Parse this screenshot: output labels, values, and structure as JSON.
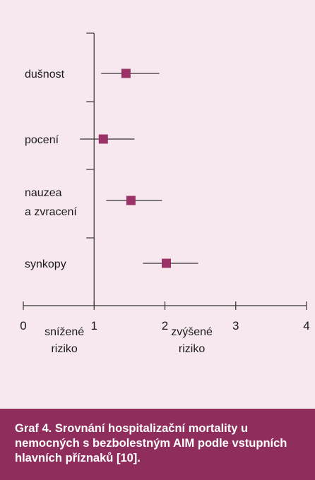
{
  "colors": {
    "background": "#f7e8ef",
    "marker": "#9b3267",
    "axis": "#333333",
    "text": "#1a1a1a",
    "caption_bg": "#8f2d5c",
    "caption_text": "#ffffff"
  },
  "chart_data": {
    "type": "forest",
    "title": "",
    "xlim": [
      0,
      4
    ],
    "x_ticks": [
      "0",
      "1",
      "2",
      "3",
      "4"
    ],
    "x_annotations": {
      "left": [
        "snížené",
        "riziko"
      ],
      "right": [
        "zvýšené",
        "riziko"
      ]
    },
    "rows": [
      {
        "label": [
          "dušnost"
        ],
        "estimate": 1.45,
        "ci_low": 1.1,
        "ci_high": 1.92
      },
      {
        "label": [
          "pocení"
        ],
        "estimate": 1.13,
        "ci_low": 0.8,
        "ci_high": 1.57
      },
      {
        "label": [
          "nauzea",
          "a zvracení"
        ],
        "estimate": 1.52,
        "ci_low": 1.17,
        "ci_high": 1.96
      },
      {
        "label": [
          "synkopy"
        ],
        "estimate": 2.02,
        "ci_low": 1.69,
        "ci_high": 2.47
      }
    ]
  },
  "caption": "Graf 4. Srovnání hospitalizační mortality u nemocných s bezbolestným AIM podle vstupních hlavních příznaků [10]."
}
